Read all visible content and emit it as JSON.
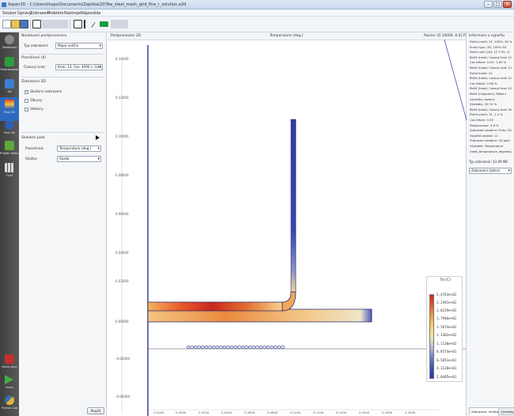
{
  "window": {
    "title": "Aspen3D - C:\\Users\\tkaps\\Documents\\Zajetka\\20\\Tee_steel_mesh_grid_fine_r_solution.a3d",
    "minimize": "–",
    "maximize": "□",
    "close": "×"
  },
  "menu": [
    "Soubor",
    "Úpravy",
    "Zobrazení",
    "Problém",
    "Nástroje",
    "Nápověda"
  ],
  "sidebar": [
    {
      "label": "Nastavení",
      "icon": "gear-icon",
      "color": "#8a8a8a"
    },
    {
      "label": "Preprocessor",
      "icon": "preprocessor-icon",
      "color": "#2e9e3a"
    },
    {
      "label": "Síť",
      "icon": "mesh-icon",
      "color": "#3c7fd1"
    },
    {
      "label": "Post 2D",
      "icon": "post2d-icon",
      "color": "#e25b1f"
    },
    {
      "label": "Post 3D",
      "icon": "post3d-icon",
      "color": "#2f5fb0"
    },
    {
      "label": "Průběh řešení",
      "icon": "solution-progress-icon",
      "color": "#5ca83a"
    },
    {
      "label": "Graf",
      "icon": "chart-icon",
      "color": "#d1d1d1"
    },
    {
      "label": "Mesh zone",
      "icon": "mesh-zone-icon",
      "color": "#c0322b"
    },
    {
      "label": "Solve",
      "icon": "solve-icon",
      "color": "#41b141"
    },
    {
      "label": "Python Lab",
      "icon": "python-icon",
      "color": "#e3b437"
    }
  ],
  "properties": {
    "header": "Nastavení postprocesoru",
    "view_type_label": "Typ zobrazení:",
    "view_type_value": "Mapa veličin",
    "quantities_header": "Proměnné (II)",
    "time_label": "Časový krok:",
    "time_value": "Krok: 14, čas: 4000 s (14/...",
    "display_header": "Zobrazení 3D",
    "options": [
      {
        "label": "Skalární zobrazení",
        "checked": true
      },
      {
        "label": "Obrysy",
        "checked": false
      },
      {
        "label": "Vektory",
        "checked": false
      }
    ],
    "scalar_header": "Skalární pole",
    "variable_label": "Proměnná:",
    "variable_value": "Temperature (deg.)",
    "component_label": "Složka:",
    "component_value": "Skalár",
    "reset_button": "Použít"
  },
  "viewport": {
    "tab": "Postprocessor 2D",
    "quantity": "Temperature (deg.)",
    "position": "Pozice: (0.14000, 0.01794)",
    "y_ticks": [
      "0.14000",
      "0.12000",
      "0.10000",
      "0.08000",
      "0.06000",
      "0.04000",
      "0.02000",
      "0.00000",
      "-0.02000",
      "-0.04000"
    ],
    "x_ticks": [
      "-0.0200",
      "0.0000",
      "0.0200",
      "0.0400",
      "0.0600",
      "0.0800",
      "0.1000",
      "0.1200",
      "0.1400",
      "0.1600",
      "0.1800",
      "0.2000"
    ],
    "legend_title": "Td (C)",
    "legend_values": [
      "2.4763e+02",
      "2.2491e+02",
      "2.0219e+02",
      "1.7946e+02",
      "1.5674e+02",
      "1.3402e+02",
      "1.1130e+02",
      "8.8574e+01",
      "6.5851e+01",
      "4.3128e+01",
      "2.0405e+01"
    ]
  },
  "right_panel": {
    "header": "Informace o výpočtu",
    "log": [
      "Počet prvků: 31, 100%, 36 %",
      "Prvky typu: 2D, 100% 2D",
      "Počet uzlů (2D): 12 3 55, %",
      "Řešič (heat): Časový krok 12",
      "Čas řešení: 0.00 : 1.65 %",
      "Řešič (heat): Časový krok 13",
      "Počet kroků: 24",
      "Řešič (heat): Časový krok 14",
      "Čas řešení: 2.06 %",
      "Řešič (heat): Časový krok 15",
      "Řešič (magnetic): Řešení",
      "Výsledky uloženy",
      "Výsledky: 2D 15 %",
      "Řešič (heat): Časový krok 16",
      "Počet prvků: 31, 1.0 %",
      "Čas řešení: 0.05",
      "Postprocesor: 4.6 %",
      "Zobrazení skalární: Prvky 2D",
      "Výpočet oblastí: 11",
      "Zobrazení skalární: 2D pole",
      "Výsledek: Temperature",
      "(heat_temperature_degrees)"
    ],
    "summary_label": "Typ zobrazení: 43.49 MB",
    "geometry_label": "Zobrazení (jádro)",
    "tabs": [
      "Zobrazení: mřížka",
      "Výsledky"
    ]
  },
  "colors": {
    "hot": "#c8281e",
    "warm": "#f4b35a",
    "cold": "#2f3fb0",
    "pipe_outline": "#1c1c6b"
  }
}
